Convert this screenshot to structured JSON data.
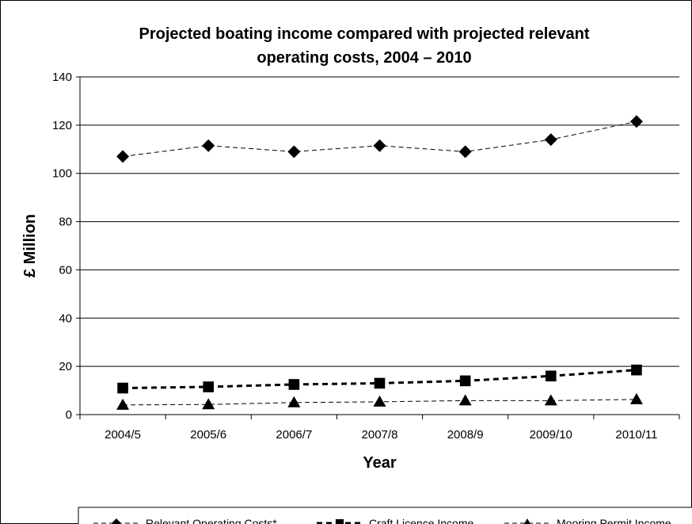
{
  "chart_data": {
    "type": "line",
    "title_line1": "Projected boating income compared with projected relevant",
    "title_line2": "operating costs, 2004 – 2010",
    "xlabel": "Year",
    "ylabel": "£ Million",
    "ylim": [
      0,
      140
    ],
    "yticks": [
      0,
      20,
      40,
      60,
      80,
      100,
      120,
      140
    ],
    "categories": [
      "2004/5",
      "2005/6",
      "2006/7",
      "2007/8",
      "2008/9",
      "2009/10",
      "2010/11"
    ],
    "grid": true,
    "legend_position": "bottom",
    "series": [
      {
        "name": "Relevant Operating Costs*",
        "marker": "diamond",
        "style": "dashed-thin",
        "color": "#000000",
        "values": [
          107,
          111.5,
          109,
          111.5,
          109,
          114,
          121.5
        ]
      },
      {
        "name": "Craft Licence Income",
        "marker": "square",
        "style": "dashed-bold",
        "color": "#000000",
        "values": [
          11,
          11.5,
          12.5,
          13,
          14,
          16,
          18.5
        ]
      },
      {
        "name": "Mooring Permit Income",
        "marker": "triangle",
        "style": "dashed-thin",
        "color": "#000000",
        "values": [
          4,
          4.2,
          5,
          5.3,
          5.8,
          5.8,
          6.3
        ]
      }
    ]
  }
}
